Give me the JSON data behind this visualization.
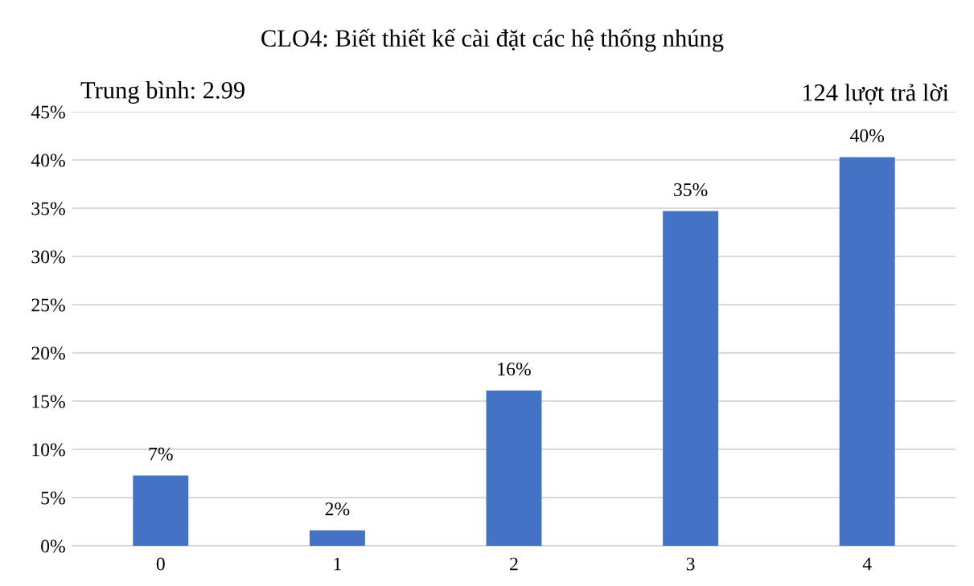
{
  "chart_data": {
    "type": "bar",
    "title": "CLO4: Biết thiết kế cài đặt các hệ thống nhúng",
    "annotations": [
      "Trung bình: 2.99",
      "124 lượt trả lời"
    ],
    "categories": [
      "0",
      "1",
      "2",
      "3",
      "4"
    ],
    "values": [
      7.3,
      1.6,
      16.1,
      34.7,
      40.3
    ],
    "value_labels": [
      "7%",
      "2%",
      "16%",
      "35%",
      "40%"
    ],
    "color": "#4472c4",
    "ylim": [
      0,
      45
    ],
    "yticks": [
      {
        "value": 0,
        "label": "0%"
      },
      {
        "value": 5,
        "label": "5%"
      },
      {
        "value": 10,
        "label": "10%"
      },
      {
        "value": 15,
        "label": "15%"
      },
      {
        "value": 20,
        "label": "20%"
      },
      {
        "value": 25,
        "label": "25%"
      },
      {
        "value": 30,
        "label": "30%"
      },
      {
        "value": 35,
        "label": "35%"
      },
      {
        "value": 40,
        "label": "40%"
      },
      {
        "value": 45,
        "label": "45%"
      }
    ],
    "grid": "y",
    "legend": false
  }
}
